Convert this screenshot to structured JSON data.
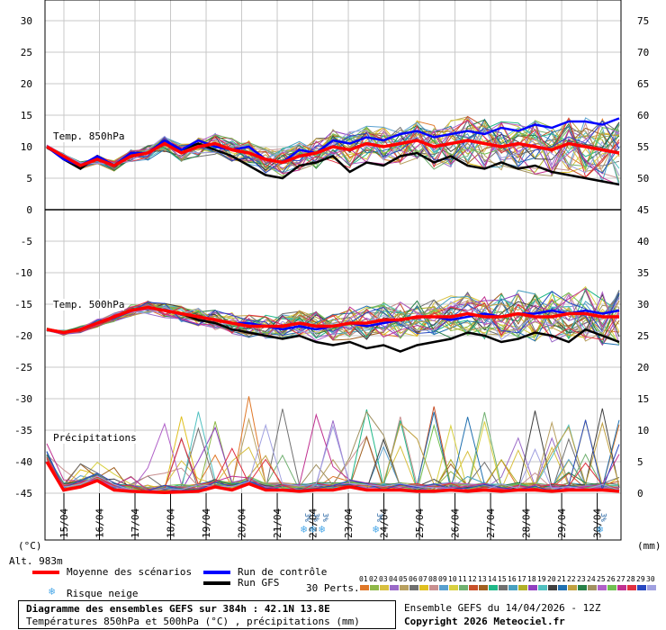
{
  "chart_data": {
    "type": "line",
    "title": "Diagramme des ensembles GEFS sur 384h : 42.1N 13.8E",
    "subtitle": "Températures 850hPa et 500hPa (°C) , précipitations (mm)",
    "panels": {
      "t850_label": "Temp. 850hPa",
      "t500_label": "Temp. 500hPa",
      "precip_label": "Précipitations"
    },
    "left_axis_ticks": [
      "30",
      "25",
      "20",
      "15",
      "10",
      "5",
      "0",
      "-5",
      "-10",
      "-15",
      "-20",
      "-25",
      "-30",
      "-35",
      "-40",
      "-45"
    ],
    "right_axis_ticks": [
      "75",
      "70",
      "65",
      "60",
      "55",
      "50",
      "45",
      "40",
      "35",
      "30",
      "25",
      "20",
      "15",
      "10",
      "5",
      "0"
    ],
    "left_unit": "(°C)",
    "right_unit": "(mm)",
    "altitude": "Alt. 983m",
    "dates": [
      "15/04",
      "16/04",
      "17/04",
      "18/04",
      "19/04",
      "20/04",
      "21/04",
      "22/04",
      "23/04",
      "24/04",
      "25/04",
      "26/04",
      "27/04",
      "28/04",
      "29/04",
      "30/04"
    ],
    "mean_t850": [
      10,
      8.5,
      7,
      8,
      7,
      8.5,
      9,
      10.5,
      9,
      10,
      10.5,
      9.5,
      9,
      8,
      7.5,
      8.5,
      9,
      10,
      9.5,
      10.5,
      10,
      10.5,
      11,
      10,
      10.5,
      11,
      10.5,
      10,
      10.5,
      10,
      9.5,
      10.5,
      10,
      9.5,
      9
    ],
    "control_t850": [
      10,
      8,
      7,
      8.5,
      7,
      9,
      9,
      11,
      9.5,
      11,
      10,
      9.5,
      10,
      8,
      7.5,
      9.5,
      9,
      11,
      10.5,
      11.5,
      11,
      12,
      12.5,
      11.5,
      12,
      12.5,
      12,
      13,
      12.5,
      13.5,
      13,
      14,
      14,
      13.5,
      14.5
    ],
    "gfs_t850": [
      10,
      8,
      6.5,
      8.5,
      7,
      9,
      9,
      11,
      9.5,
      10.5,
      9.5,
      8.5,
      7,
      5.5,
      5,
      7,
      7.5,
      8.5,
      6,
      7.5,
      7,
      8.5,
      9,
      7.5,
      8.5,
      7,
      6.5,
      7.5,
      6.5,
      7,
      6,
      5.5,
      5,
      4.5,
      4
    ],
    "mean_t500": [
      -19,
      -19.5,
      -19,
      -18,
      -17,
      -16,
      -15.5,
      -16,
      -16.5,
      -17,
      -17.5,
      -18,
      -18.5,
      -18.5,
      -18.5,
      -18,
      -18.5,
      -18.5,
      -18,
      -18,
      -17.5,
      -17.5,
      -17,
      -17,
      -17,
      -16.5,
      -17,
      -17,
      -16.5,
      -17,
      -17,
      -16.5,
      -16.5,
      -17,
      -17
    ],
    "control_t500": [
      -19,
      -19.5,
      -19,
      -18,
      -17,
      -16,
      -15.5,
      -16,
      -16.5,
      -17,
      -17.5,
      -18,
      -18,
      -18.5,
      -19,
      -18.5,
      -19,
      -18.5,
      -18,
      -18.5,
      -18,
      -17.5,
      -17,
      -17,
      -17.5,
      -17,
      -16.5,
      -17,
      -16.5,
      -16.5,
      -16,
      -16.5,
      -16,
      -16.5,
      -16
    ],
    "gfs_t500": [
      -19,
      -19.5,
      -19,
      -18,
      -17,
      -16,
      -15.5,
      -16,
      -16.5,
      -17.5,
      -18,
      -19,
      -19.5,
      -20,
      -20.5,
      -20,
      -21,
      -21.5,
      -21,
      -22,
      -21.5,
      -22.5,
      -21.5,
      -21,
      -20.5,
      -19.5,
      -20,
      -21,
      -20.5,
      -19.5,
      -20,
      -21,
      -19,
      -20,
      -21
    ],
    "mean_precip": [
      5,
      0.5,
      1,
      2,
      0.5,
      0.3,
      0.2,
      0.1,
      0.2,
      0.3,
      1,
      0.5,
      1.5,
      0.5,
      0.5,
      0.3,
      0.5,
      0.5,
      1,
      0.5,
      0.5,
      0.5,
      0.3,
      0.3,
      0.5,
      0.3,
      0.5,
      0.3,
      0.5,
      0.5,
      0.3,
      0.5,
      0.5,
      0.5,
      0.3
    ],
    "legend": {
      "mean": "Moyenne des scénarios",
      "control": "Run de contrôle",
      "gfs": "Run GFS",
      "snow": "Risque neige",
      "perts": "30 Perts."
    },
    "pert_numbers": [
      "01",
      "02",
      "03",
      "04",
      "05",
      "06",
      "07",
      "08",
      "09",
      "10",
      "11",
      "12",
      "13",
      "14",
      "15",
      "16",
      "17",
      "18",
      "19",
      "20",
      "21",
      "22",
      "23",
      "24",
      "25",
      "26",
      "27",
      "28",
      "29",
      "30"
    ],
    "pert_colors": [
      "#e07828",
      "#8fb848",
      "#d8c040",
      "#9a6ac8",
      "#b8a060",
      "#707070",
      "#e0c020",
      "#c89090",
      "#58a0d0",
      "#d8d040",
      "#70b070",
      "#c85028",
      "#a06020",
      "#20b888",
      "#707070",
      "#48a0c0",
      "#b0b028",
      "#9040c0",
      "#50c0c0",
      "#404040",
      "#2070b0",
      "#c0a040",
      "#288048",
      "#a09060",
      "#b060c8",
      "#70c050",
      "#c03090",
      "#e03040",
      "#2848c0",
      "#a0a0e0"
    ],
    "snow_markers": [
      {
        "label": "3%"
      },
      {
        "label": "3%"
      },
      {
        "label": "3%"
      },
      {
        "label": "3%"
      },
      {
        "label": "3%"
      }
    ],
    "colors": {
      "mean": "#ff0000",
      "control": "#0000ff",
      "gfs": "#000000"
    },
    "footer": {
      "ensemble": "Ensemble GEFS du 14/04/2026 - 12Z",
      "copyright": "Copyright 2026 Meteociel.fr"
    }
  }
}
